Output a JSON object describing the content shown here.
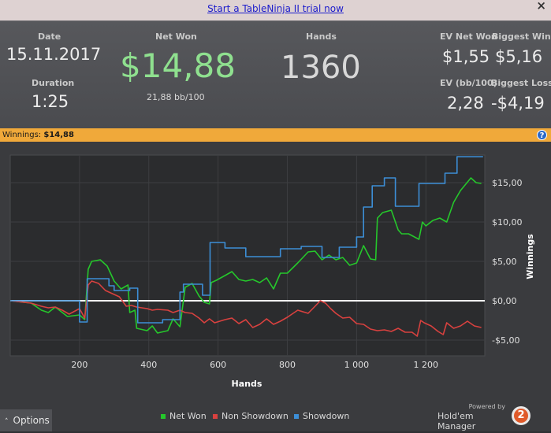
{
  "top_bar": {
    "trial_link": "Start a TableNinja II trial now",
    "close_glyph": "×"
  },
  "stats": {
    "date_label": "Date",
    "date": "15.11.2017",
    "duration_label": "Duration",
    "duration": "1:25",
    "net_won_label": "Net Won",
    "net_won": "$14,88",
    "bb_per_100": "21,88 bb/100",
    "hands_label": "Hands",
    "hands": "1360",
    "ev_net_won_label": "EV Net Won",
    "ev_net_won": "$1,55",
    "biggest_win_label": "Biggest Win",
    "biggest_win": "$5,16",
    "ev_bb100_label": "EV (bb/100)",
    "ev_bb100": "2,28",
    "biggest_loss_label": "Biggest Loss",
    "biggest_loss": "-$4,19"
  },
  "winnings_bar": {
    "label": "Winnings:",
    "value": "$14,88",
    "help_glyph": "?"
  },
  "options_button": {
    "label": "Options",
    "arrow": "˄"
  },
  "brand": {
    "powered_by": "Powered by",
    "name": "Hold'em Manager",
    "badge": "2"
  },
  "colors": {
    "net_won": "#25c72b",
    "non_showdown": "#d8413f",
    "showdown": "#3c8ed6",
    "zero_line": "#ffffff"
  },
  "chart_data": {
    "type": "line",
    "xlabel": "Hands",
    "ylabel": "Winnings",
    "xlim": [
      0,
      1370
    ],
    "ylim": [
      -7,
      18.5
    ],
    "x_ticks": [
      200,
      400,
      600,
      800,
      1000,
      1200
    ],
    "x_tick_labels": [
      "200",
      "400",
      "600",
      "800",
      "1 000",
      "1 200"
    ],
    "y_ticks": [
      15,
      10,
      5,
      0,
      -5
    ],
    "y_tick_labels": [
      "$15,00",
      "$10,00",
      "$5,00",
      "$0,00",
      "-$5,00"
    ],
    "grid": true,
    "legend_position": "bottom-center",
    "series": [
      {
        "name": "Net Won",
        "points": [
          [
            0,
            0
          ],
          [
            60,
            -0.3
          ],
          [
            90,
            -1.2
          ],
          [
            110,
            -1.5
          ],
          [
            130,
            -0.8
          ],
          [
            165,
            -2
          ],
          [
            200,
            -1.8
          ],
          [
            215,
            -2.4
          ],
          [
            225,
            4
          ],
          [
            235,
            5
          ],
          [
            260,
            5.2
          ],
          [
            280,
            4.4
          ],
          [
            300,
            2.5
          ],
          [
            320,
            1.5
          ],
          [
            340,
            2
          ],
          [
            345,
            -1.5
          ],
          [
            360,
            -1.2
          ],
          [
            365,
            -3.5
          ],
          [
            395,
            -3.8
          ],
          [
            410,
            -3.2
          ],
          [
            425,
            -4.1
          ],
          [
            455,
            -3.8
          ],
          [
            470,
            -2.3
          ],
          [
            490,
            -3.3
          ],
          [
            505,
            1.7
          ],
          [
            525,
            2.2
          ],
          [
            545,
            0.6
          ],
          [
            560,
            -0.2
          ],
          [
            575,
            -0.4
          ],
          [
            580,
            2.3
          ],
          [
            595,
            2.6
          ],
          [
            620,
            3.2
          ],
          [
            640,
            3.7
          ],
          [
            660,
            2.7
          ],
          [
            680,
            2.5
          ],
          [
            700,
            2.7
          ],
          [
            720,
            2.3
          ],
          [
            740,
            2.9
          ],
          [
            760,
            1.5
          ],
          [
            780,
            3.5
          ],
          [
            800,
            3.5
          ],
          [
            830,
            4.8
          ],
          [
            860,
            6.2
          ],
          [
            880,
            6.3
          ],
          [
            900,
            5.2
          ],
          [
            920,
            5.8
          ],
          [
            940,
            5.2
          ],
          [
            960,
            5.5
          ],
          [
            980,
            4.5
          ],
          [
            1000,
            4.8
          ],
          [
            1020,
            7
          ],
          [
            1040,
            5.3
          ],
          [
            1055,
            5.2
          ],
          [
            1060,
            10.5
          ],
          [
            1075,
            11.2
          ],
          [
            1100,
            11.5
          ],
          [
            1120,
            9
          ],
          [
            1130,
            8.5
          ],
          [
            1150,
            8.5
          ],
          [
            1180,
            7.8
          ],
          [
            1190,
            10
          ],
          [
            1200,
            9.5
          ],
          [
            1220,
            10.2
          ],
          [
            1240,
            10.5
          ],
          [
            1260,
            10
          ],
          [
            1280,
            12.5
          ],
          [
            1300,
            14
          ],
          [
            1330,
            15.6
          ],
          [
            1345,
            15
          ],
          [
            1360,
            14.9
          ]
        ]
      },
      {
        "name": "Non Showdown",
        "points": [
          [
            0,
            0
          ],
          [
            60,
            -0.3
          ],
          [
            90,
            -0.7
          ],
          [
            110,
            -0.9
          ],
          [
            130,
            -0.8
          ],
          [
            150,
            -1.2
          ],
          [
            170,
            -1.7
          ],
          [
            200,
            -1
          ],
          [
            215,
            -2.2
          ],
          [
            225,
            2
          ],
          [
            235,
            2.5
          ],
          [
            255,
            2.2
          ],
          [
            275,
            1.3
          ],
          [
            295,
            0.9
          ],
          [
            315,
            0.5
          ],
          [
            335,
            -0.7
          ],
          [
            350,
            -0.6
          ],
          [
            365,
            -0.8
          ],
          [
            395,
            -1
          ],
          [
            410,
            -1.2
          ],
          [
            425,
            -1.1
          ],
          [
            455,
            -1.2
          ],
          [
            470,
            -1.5
          ],
          [
            490,
            -1.2
          ],
          [
            505,
            -1.5
          ],
          [
            525,
            -1.6
          ],
          [
            545,
            -2.2
          ],
          [
            560,
            -2.8
          ],
          [
            575,
            -2.3
          ],
          [
            590,
            -2.8
          ],
          [
            620,
            -2.4
          ],
          [
            640,
            -2.2
          ],
          [
            660,
            -2.9
          ],
          [
            680,
            -2.4
          ],
          [
            700,
            -3.4
          ],
          [
            720,
            -3
          ],
          [
            740,
            -2.3
          ],
          [
            760,
            -3
          ],
          [
            780,
            -2.6
          ],
          [
            800,
            -2.1
          ],
          [
            830,
            -1.2
          ],
          [
            860,
            -1.6
          ],
          [
            880,
            -0.7
          ],
          [
            895,
            0
          ],
          [
            910,
            -0.3
          ],
          [
            925,
            -1
          ],
          [
            940,
            -1.6
          ],
          [
            960,
            -2.2
          ],
          [
            980,
            -2.1
          ],
          [
            1000,
            -2.9
          ],
          [
            1020,
            -3
          ],
          [
            1040,
            -3.6
          ],
          [
            1060,
            -3.8
          ],
          [
            1080,
            -3.7
          ],
          [
            1100,
            -3.9
          ],
          [
            1120,
            -3.5
          ],
          [
            1140,
            -4
          ],
          [
            1160,
            -4
          ],
          [
            1175,
            -4.5
          ],
          [
            1185,
            -2.5
          ],
          [
            1195,
            -2.8
          ],
          [
            1215,
            -3.2
          ],
          [
            1235,
            -3.9
          ],
          [
            1250,
            -4.3
          ],
          [
            1260,
            -2.8
          ],
          [
            1280,
            -3.5
          ],
          [
            1300,
            -3.2
          ],
          [
            1320,
            -2.6
          ],
          [
            1340,
            -3.2
          ],
          [
            1360,
            -3.4
          ]
        ]
      },
      {
        "name": "Showdown",
        "points": [
          [
            0,
            0
          ],
          [
            200,
            0
          ],
          [
            200,
            -2.7
          ],
          [
            222,
            -2.7
          ],
          [
            222,
            2.8
          ],
          [
            285,
            2.8
          ],
          [
            285,
            1.9
          ],
          [
            300,
            1.9
          ],
          [
            300,
            1.3
          ],
          [
            345,
            1.3
          ],
          [
            345,
            1.6
          ],
          [
            368,
            1.6
          ],
          [
            368,
            -2.8
          ],
          [
            440,
            -2.8
          ],
          [
            440,
            -2.4
          ],
          [
            490,
            -2.4
          ],
          [
            490,
            1.1
          ],
          [
            500,
            1.1
          ],
          [
            500,
            2.1
          ],
          [
            555,
            2.1
          ],
          [
            555,
            0.7
          ],
          [
            577,
            0.7
          ],
          [
            577,
            7.4
          ],
          [
            620,
            7.4
          ],
          [
            620,
            6.7
          ],
          [
            680,
            6.7
          ],
          [
            680,
            5.6
          ],
          [
            780,
            5.6
          ],
          [
            780,
            6.6
          ],
          [
            840,
            6.6
          ],
          [
            840,
            6.9
          ],
          [
            900,
            6.9
          ],
          [
            900,
            5.5
          ],
          [
            950,
            5.5
          ],
          [
            950,
            6.8
          ],
          [
            1000,
            6.8
          ],
          [
            1000,
            8.1
          ],
          [
            1020,
            8.1
          ],
          [
            1020,
            11.9
          ],
          [
            1045,
            11.9
          ],
          [
            1045,
            14.6
          ],
          [
            1080,
            14.6
          ],
          [
            1080,
            15.6
          ],
          [
            1112,
            15.6
          ],
          [
            1112,
            12
          ],
          [
            1180,
            12
          ],
          [
            1180,
            14.9
          ],
          [
            1255,
            14.9
          ],
          [
            1255,
            16.2
          ],
          [
            1290,
            16.2
          ],
          [
            1290,
            18.3
          ],
          [
            1365,
            18.3
          ]
        ]
      }
    ]
  }
}
